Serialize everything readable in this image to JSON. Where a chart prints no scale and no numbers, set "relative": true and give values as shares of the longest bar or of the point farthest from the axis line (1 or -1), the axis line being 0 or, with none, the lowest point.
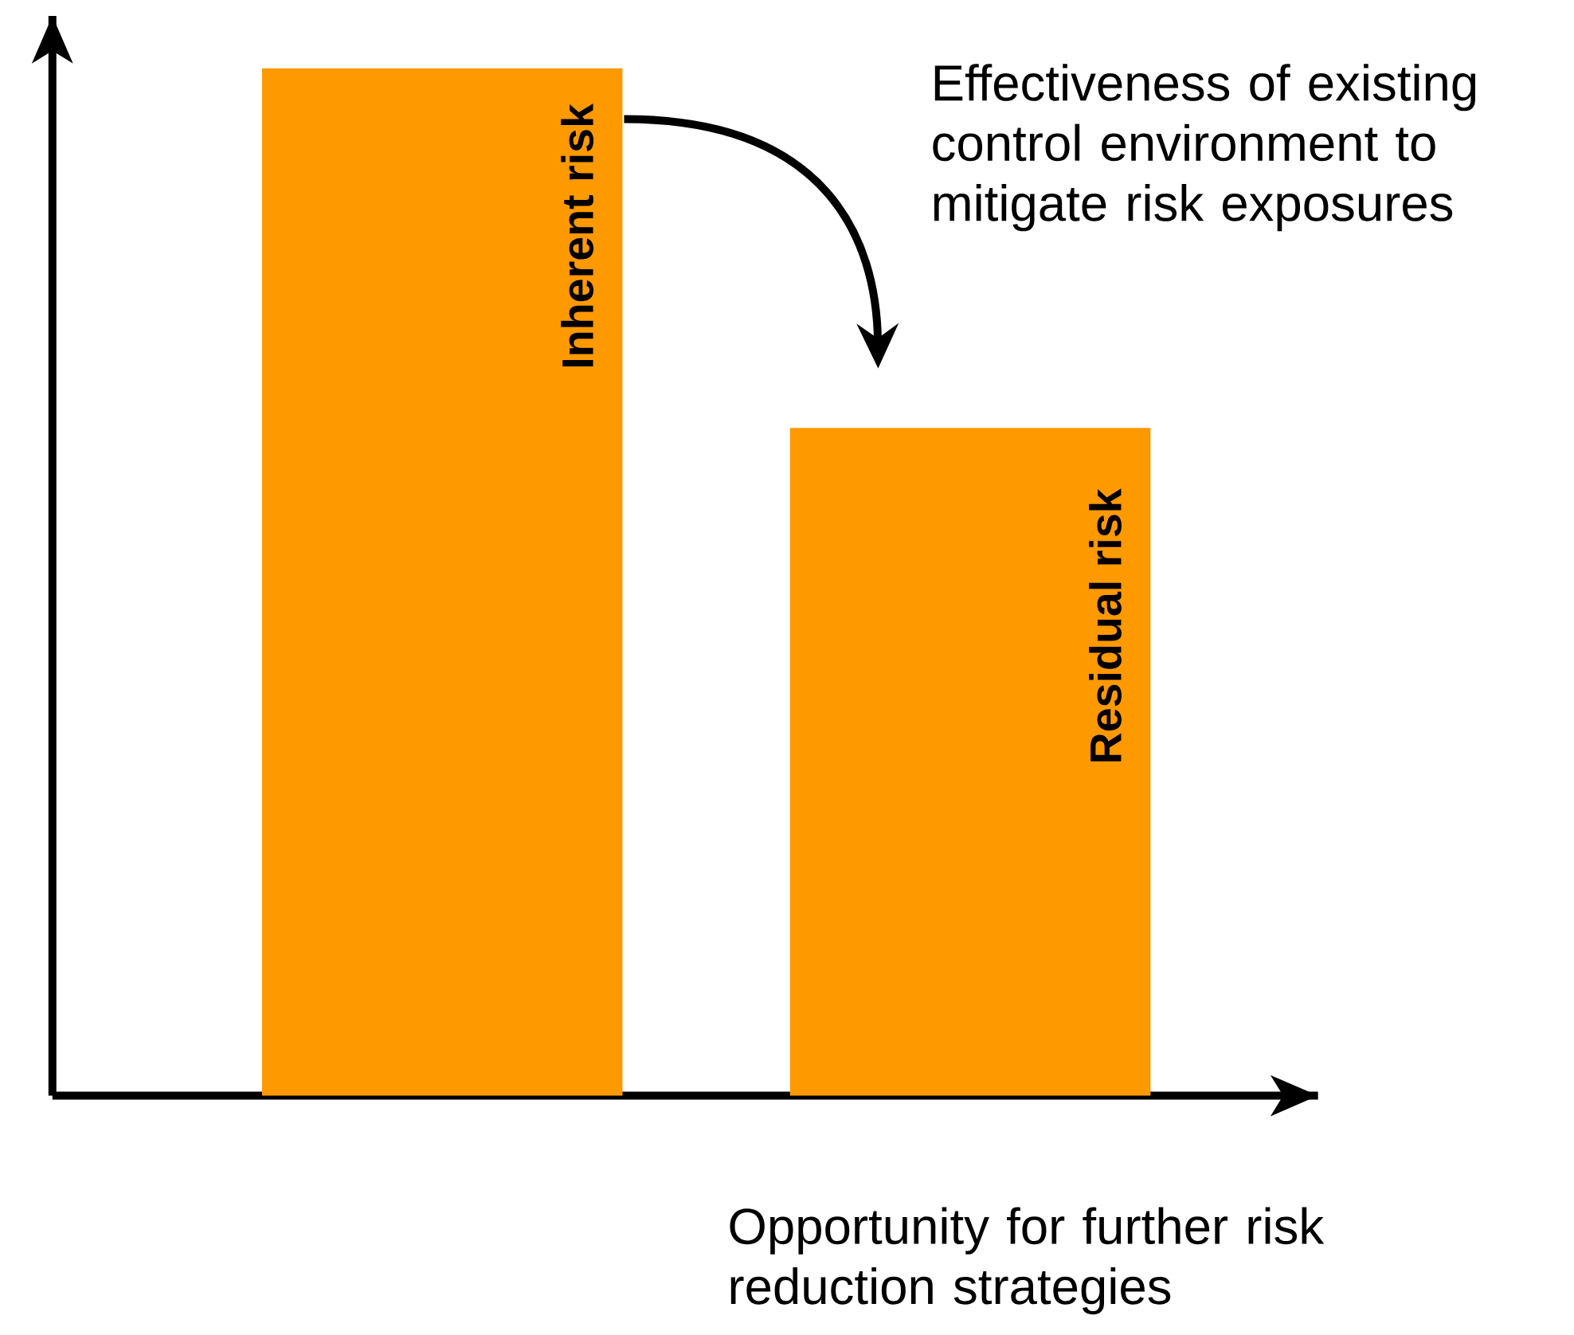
{
  "chart_data": {
    "type": "bar",
    "relative": true,
    "categories": [
      "Inherent  risk",
      "Residual risk"
    ],
    "values": [
      1,
      0.65
    ],
    "color": "#ff9900",
    "annotations": [
      "Effectiveness of existing control environment to mitigate risk exposures",
      "Opportunity for further risk reduction strategies"
    ]
  }
}
